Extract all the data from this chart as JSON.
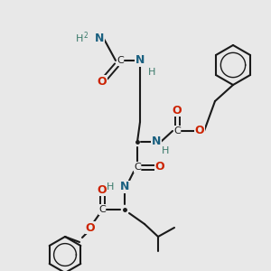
{
  "bg_color": "#e8e8e8",
  "bond_color": "#1a1a1a",
  "N_color": "#1a6080",
  "O_color": "#cc2200",
  "H_color": "#3a7a6a",
  "figsize": [
    3.0,
    3.0
  ],
  "dpi": 100,
  "xlim": [
    0,
    300
  ],
  "ylim": [
    0,
    300
  ]
}
